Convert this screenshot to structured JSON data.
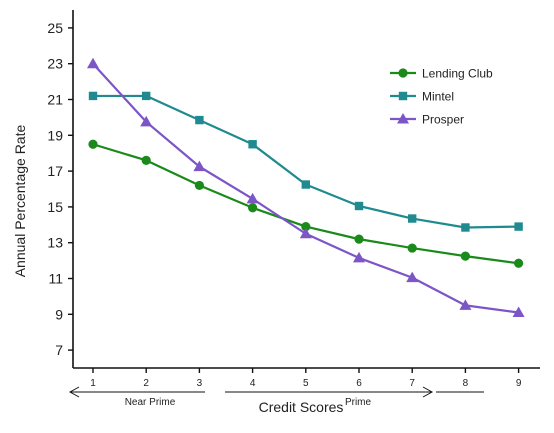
{
  "chart_data": {
    "type": "line",
    "xlabel": "Credit Scores",
    "ylabel": "Annual Percentage Rate",
    "x": [
      1,
      2,
      3,
      4,
      5,
      6,
      7,
      8,
      9
    ],
    "ylim": [
      6,
      26
    ],
    "yticks": [
      7,
      9,
      11,
      13,
      15,
      17,
      19,
      21,
      23,
      25
    ],
    "grid": false,
    "legend_position": "top-right",
    "series": [
      {
        "name": "Lending Club",
        "color": "#1a8a1a",
        "marker": "circle",
        "values": [
          18.5,
          17.6,
          16.2,
          14.95,
          13.9,
          13.2,
          12.7,
          12.25,
          11.85
        ]
      },
      {
        "name": "Mintel",
        "color": "#1f8a8f",
        "marker": "square",
        "values": [
          21.2,
          21.2,
          19.85,
          18.5,
          16.25,
          15.05,
          14.35,
          13.85,
          13.9
        ]
      },
      {
        "name": "Prosper",
        "color": "#7c55c7",
        "marker": "triangle",
        "values": [
          23.0,
          19.75,
          17.25,
          15.45,
          13.5,
          12.15,
          11.05,
          9.5,
          9.1
        ]
      }
    ],
    "bands": [
      {
        "label": "Near Prime",
        "from": 1,
        "to": 3
      },
      {
        "label": "Prime",
        "from": 3.5,
        "to": 7
      }
    ]
  }
}
